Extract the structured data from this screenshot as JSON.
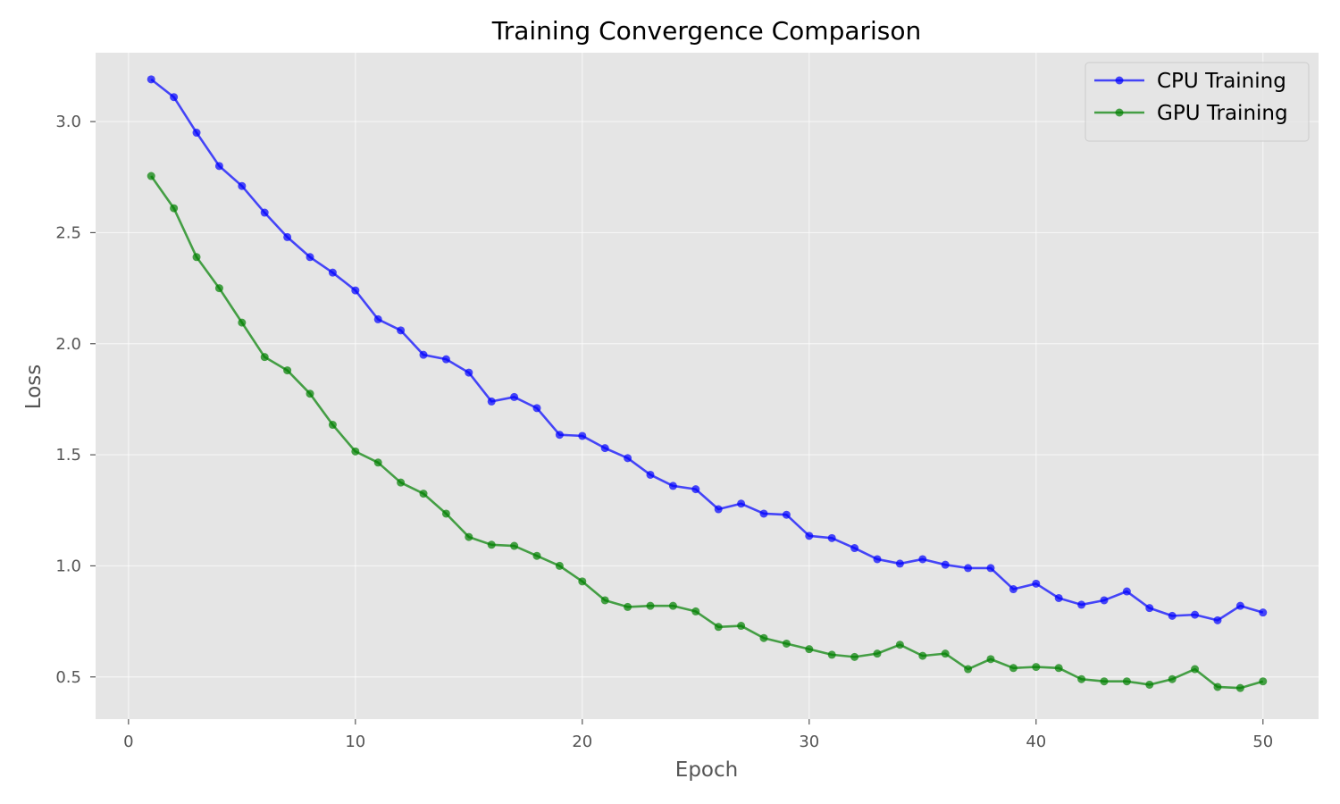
{
  "chart_data": {
    "type": "line",
    "title": "Training Convergence Comparison",
    "xlabel": "Epoch",
    "ylabel": "Loss",
    "xlim": [
      -1.45,
      52.45
    ],
    "ylim": [
      0.31,
      3.31
    ],
    "x_ticks": [
      0,
      10,
      20,
      30,
      40,
      50
    ],
    "x_tick_labels": [
      "0",
      "10",
      "20",
      "30",
      "40",
      "50"
    ],
    "y_ticks": [
      0.5,
      1.0,
      1.5,
      2.0,
      2.5,
      3.0
    ],
    "y_tick_labels": [
      "0.5",
      "1.0",
      "1.5",
      "2.0",
      "2.5",
      "3.0"
    ],
    "grid": true,
    "legend_position": "top-right",
    "style": "ggplot",
    "x": [
      1,
      2,
      3,
      4,
      5,
      6,
      7,
      8,
      9,
      10,
      11,
      12,
      13,
      14,
      15,
      16,
      17,
      18,
      19,
      20,
      21,
      22,
      23,
      24,
      25,
      26,
      27,
      28,
      29,
      30,
      31,
      32,
      33,
      34,
      35,
      36,
      37,
      38,
      39,
      40,
      41,
      42,
      43,
      44,
      45,
      46,
      47,
      48,
      49,
      50
    ],
    "series": [
      {
        "name": "CPU Training",
        "color": "#0000ff",
        "values": [
          3.19,
          3.11,
          2.95,
          2.8,
          2.71,
          2.59,
          2.48,
          2.39,
          2.32,
          2.24,
          2.11,
          2.06,
          1.95,
          1.93,
          1.87,
          1.74,
          1.76,
          1.71,
          1.59,
          1.585,
          1.53,
          1.485,
          1.41,
          1.36,
          1.345,
          1.255,
          1.28,
          1.235,
          1.23,
          1.135,
          1.125,
          1.08,
          1.03,
          1.01,
          1.03,
          1.005,
          0.99,
          0.99,
          0.895,
          0.92,
          0.855,
          0.825,
          0.845,
          0.885,
          0.81,
          0.775,
          0.78,
          0.755,
          0.82,
          0.79
        ]
      },
      {
        "name": "GPU Training",
        "color": "#008000",
        "values": [
          2.755,
          2.61,
          2.39,
          2.25,
          2.095,
          1.94,
          1.88,
          1.775,
          1.635,
          1.515,
          1.465,
          1.375,
          1.325,
          1.235,
          1.13,
          1.095,
          1.09,
          1.045,
          1.0,
          0.93,
          0.845,
          0.815,
          0.82,
          0.82,
          0.795,
          0.725,
          0.73,
          0.675,
          0.65,
          0.625,
          0.6,
          0.59,
          0.605,
          0.645,
          0.595,
          0.605,
          0.535,
          0.58,
          0.54,
          0.545,
          0.54,
          0.49,
          0.48,
          0.48,
          0.465,
          0.49,
          0.535,
          0.455,
          0.45,
          0.48
        ]
      }
    ]
  }
}
